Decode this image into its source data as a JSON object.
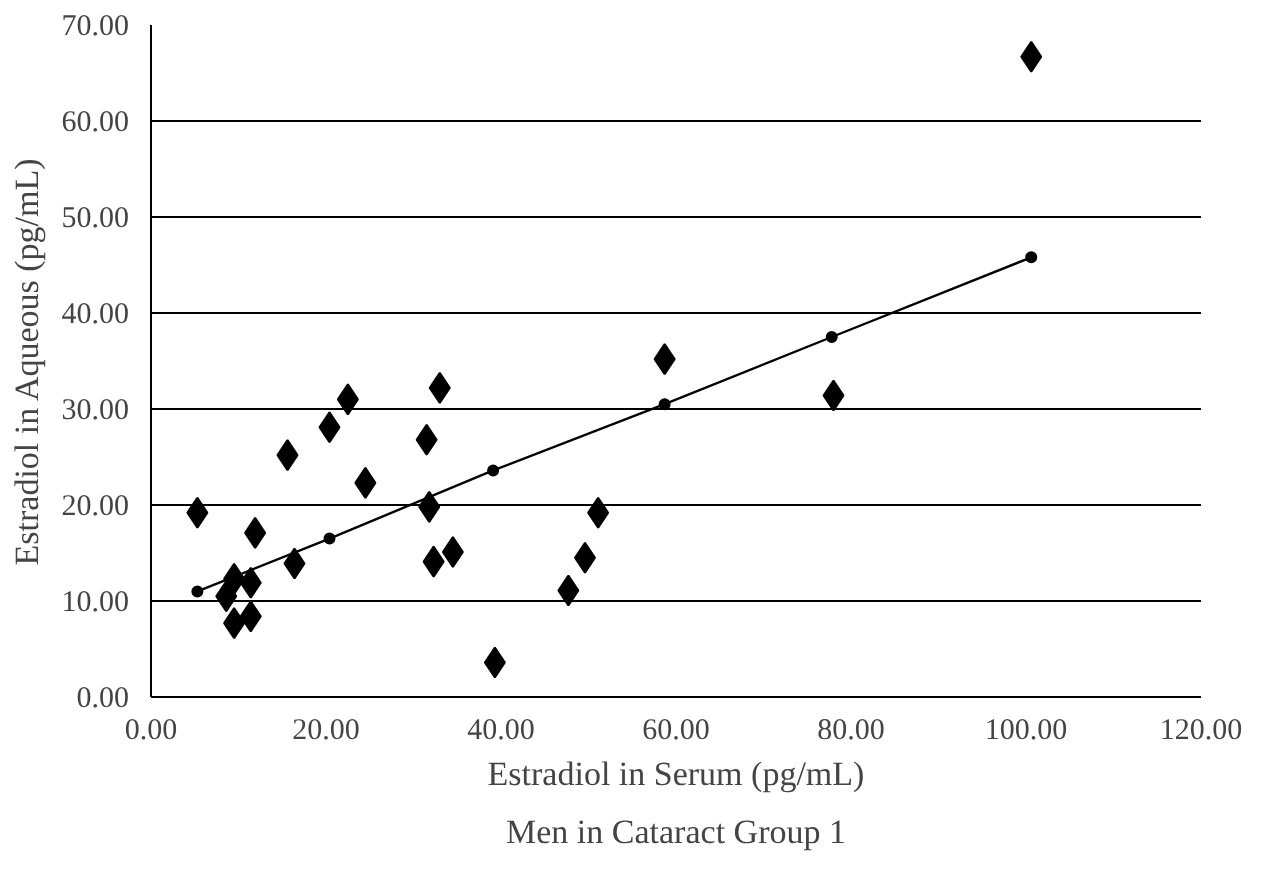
{
  "chart_data": {
    "type": "scatter",
    "title": "Men in Cataract Group 1",
    "xlabel": "Estradiol in Serum (pg/mL)",
    "ylabel": "Estradiol in Aqueous (pg/mL)",
    "xlim": [
      0,
      120
    ],
    "ylim": [
      0,
      70
    ],
    "xticks": [
      {
        "value": 0,
        "label": "0.00"
      },
      {
        "value": 20,
        "label": "20.00"
      },
      {
        "value": 40,
        "label": "40.00"
      },
      {
        "value": 60,
        "label": "60.00"
      },
      {
        "value": 80,
        "label": "80.00"
      },
      {
        "value": 100,
        "label": "100.00"
      },
      {
        "value": 120,
        "label": "120.00"
      }
    ],
    "yticks": [
      {
        "value": 0,
        "label": "0.00"
      },
      {
        "value": 10,
        "label": "10.00"
      },
      {
        "value": 20,
        "label": "20.00"
      },
      {
        "value": 30,
        "label": "30.00"
      },
      {
        "value": 40,
        "label": "40.00"
      },
      {
        "value": 50,
        "label": "50.00"
      },
      {
        "value": 60,
        "label": "60.00"
      },
      {
        "value": 70,
        "label": "70.00"
      }
    ],
    "grid": "y",
    "marker": "diamond",
    "series": [
      {
        "color": "#000000",
        "x": [
          5.3,
          9.5,
          8.6,
          11.4,
          9.5,
          11.4,
          11.9,
          15.6,
          16.4,
          20.4,
          22.5,
          24.5,
          31.5,
          33.0,
          31.8,
          32.3,
          34.5,
          39.3,
          47.7,
          49.6,
          51.1,
          58.7,
          78.0,
          100.6
        ],
        "values": [
          19.2,
          12.3,
          10.5,
          11.9,
          7.7,
          8.4,
          17.1,
          25.2,
          13.9,
          28.1,
          31.0,
          22.3,
          26.8,
          32.2,
          19.8,
          14.1,
          15.1,
          3.6,
          11.1,
          14.5,
          19.2,
          35.2,
          31.4,
          66.7
        ]
      },
      {
        "type": "line",
        "color": "#000000",
        "marker": "circle",
        "line_style": "solid",
        "x": [
          5.3,
          20.4,
          39.1,
          58.7,
          77.8,
          100.6
        ],
        "values": [
          11.0,
          16.5,
          23.6,
          30.5,
          37.5,
          45.8
        ]
      }
    ]
  }
}
